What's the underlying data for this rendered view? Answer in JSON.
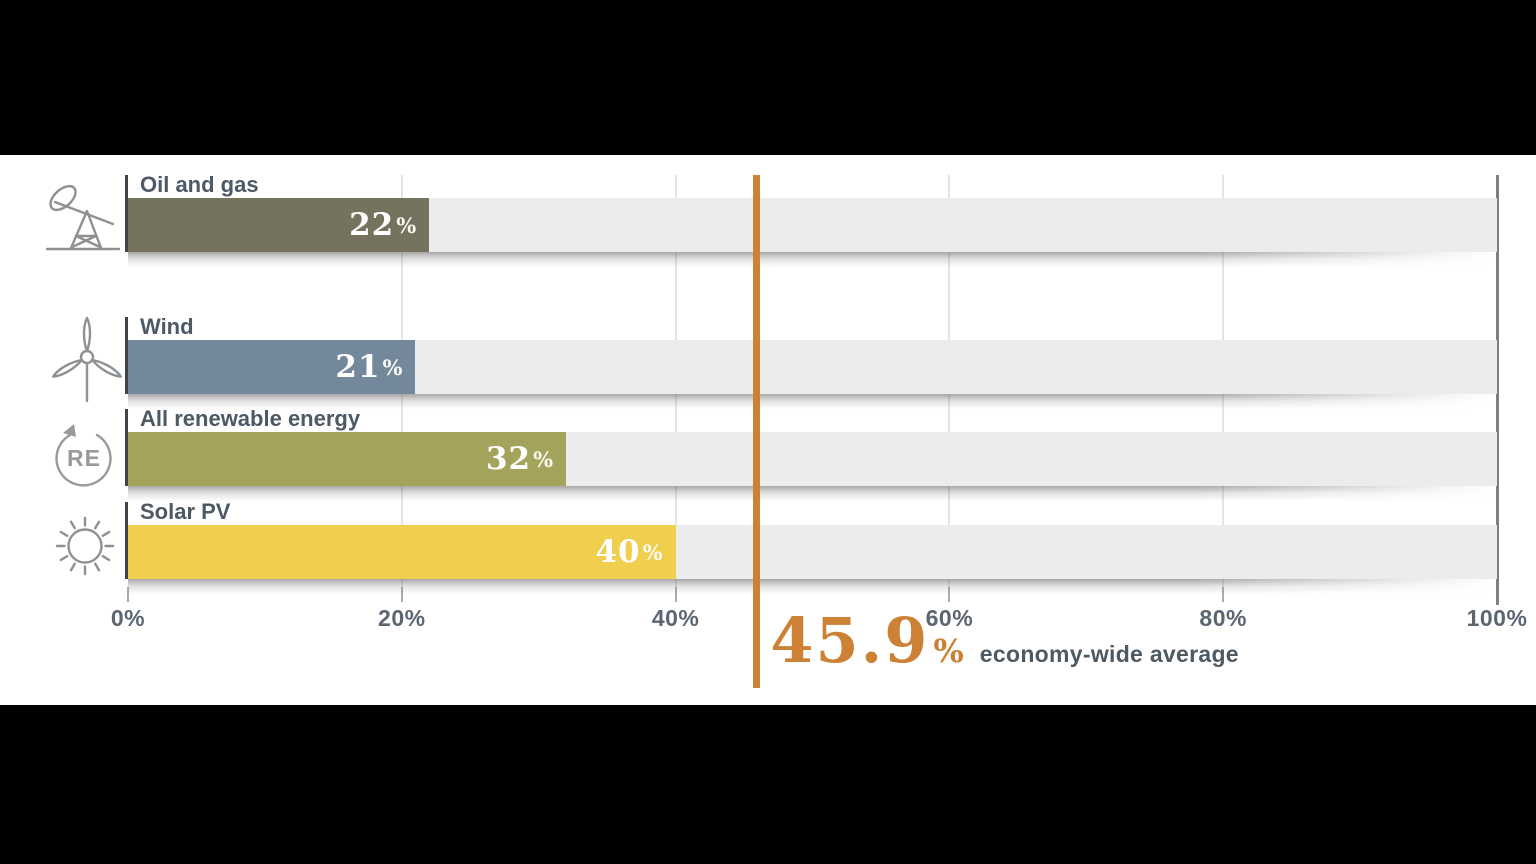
{
  "chart_data": {
    "type": "bar",
    "orientation": "horizontal",
    "title": "",
    "categories": [
      "Oil and gas",
      "Wind",
      "All renewable energy",
      "Solar PV"
    ],
    "values": [
      22,
      21,
      32,
      40
    ],
    "value_digits": [
      "22",
      "21",
      "32",
      "40"
    ],
    "percent_suffix": "%",
    "bar_colors": [
      "#75725e",
      "#74889b",
      "#a3a35b",
      "#f0cf4e"
    ],
    "icons": [
      "oil-pumpjack-icon",
      "wind-turbine-icon",
      "renewable-energy-icon",
      "sun-icon"
    ],
    "x_ticks": [
      "0%",
      "20%",
      "40%",
      "60%",
      "80%",
      "100%"
    ],
    "xlim": [
      0,
      100
    ],
    "grid": true,
    "legend": "none",
    "track_color": "#ececec",
    "reference_line": {
      "value": 45.9,
      "display": "45.9",
      "suffix": "%",
      "caption": "economy-wide average",
      "color": "#cf8133"
    }
  }
}
